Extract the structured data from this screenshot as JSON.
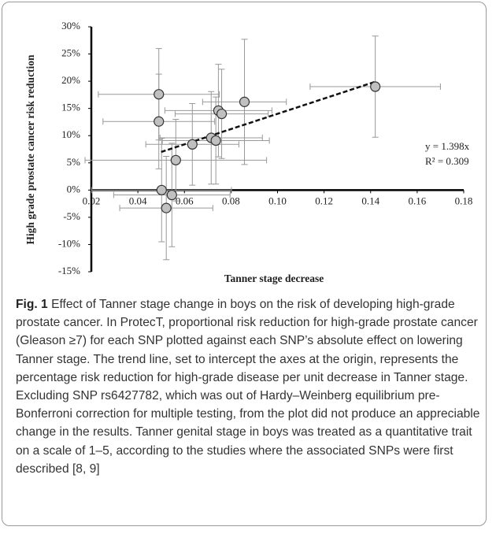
{
  "chart_data": {
    "type": "scatter",
    "xlabel": "Tanner stage decrease",
    "ylabel": "High grade prostate cancer risk reduction",
    "xlim": [
      0.02,
      0.18
    ],
    "xticks": [
      0.02,
      0.04,
      0.06,
      0.08,
      {
        "value": 0.1,
        "label": "0.10"
      },
      0.12,
      0.14,
      0.16,
      0.18
    ],
    "ylim": [
      -15,
      30
    ],
    "yticks": [
      {
        "value": -15,
        "label": "-15%"
      },
      {
        "value": -10,
        "label": "-10%"
      },
      {
        "value": -5,
        "label": "-5%"
      },
      {
        "value": 0,
        "label": "0%"
      },
      {
        "value": 5,
        "label": "5%"
      },
      {
        "value": 10,
        "label": "10%"
      },
      {
        "value": 15,
        "label": "15%"
      },
      {
        "value": 20,
        "label": "20%"
      },
      {
        "value": 25,
        "label": "25%"
      },
      {
        "value": 30,
        "label": "30%"
      }
    ],
    "series": [
      {
        "color": "#c0c0c0",
        "x": [
          0.142,
          0.0858,
          0.049,
          0.049,
          0.0746,
          0.076,
          0.0634,
          0.0715,
          0.0735,
          0.0563,
          0.0502,
          0.0546,
          0.0522
        ],
        "values": [
          19.0,
          16.2,
          17.6,
          12.6,
          14.6,
          14.0,
          8.4,
          9.6,
          9.1,
          5.5,
          0,
          -0.9,
          -3.3
        ],
        "xerr": [
          0.028,
          0.018,
          0.026,
          0.024,
          0.023,
          0.02,
          0.02,
          0.022,
          0.023,
          0.039,
          0.03,
          0.025,
          0.02
        ],
        "yerr": [
          9.3,
          11.5,
          8.4,
          8.7,
          8.5,
          8.2,
          7.5,
          8.5,
          8.0,
          7.5,
          9.5,
          9.5,
          9.5
        ]
      }
    ],
    "trendline": {
      "x": [
        0.05,
        0.142
      ],
      "y": [
        7.0,
        19.9
      ]
    },
    "annotations": [
      "y = 1.398x",
      "R² = 0.309"
    ]
  },
  "caption": {
    "label": "Fig. 1",
    "text": " Effect of Tanner stage change in boys on the risk of developing high-grade prostate cancer. In ProtecT, proportional risk reduction for high-grade prostate cancer (Gleason ≥7) for each SNP plotted against each SNP’s absolute effect on lowering Tanner stage. The trend line, set to intercept the axes at the origin, represents the percentage risk reduction for high-grade disease per unit decrease in Tanner stage. Excluding SNP rs6427782, which was out of Hardy–Weinberg equilibrium pre-Bonferroni correction for multiple testing, from the plot did not produce an appreciable change in the results. Tanner genital stage in boys was treated as a quantitative trait on a scale of 1–5, according to the studies where the associated SNPs were first described [8, 9]"
  }
}
